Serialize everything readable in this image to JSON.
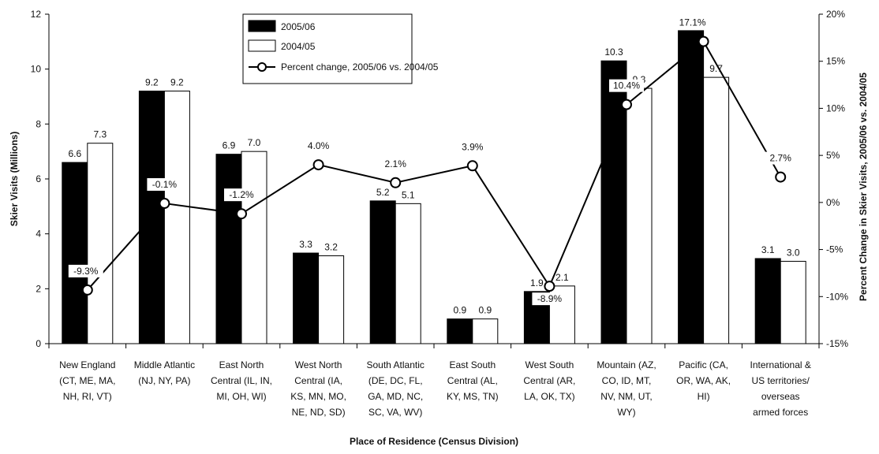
{
  "chart_data": {
    "type": "bar",
    "categories": [
      "New England (CT, ME, MA, NH, RI, VT)",
      "Middle Atlantic (NJ, NY, PA)",
      "East North Central (IL, IN, MI, OH, WI)",
      "West North Central (IA, KS, MN, MO, NE, ND, SD)",
      "South Atlantic (DE, DC, FL, GA, MD, NC, SC, VA, WV)",
      "East South Central (AL, KY, MS, TN)",
      "West South Central (AR, LA, OK, TX)",
      "Mountain (AZ, CO, ID, MT, NV, NM, UT, WY)",
      "Pacific (CA, OR, WA, AK, HI)",
      "International & US territories/ overseas armed forces"
    ],
    "category_lines": [
      [
        "New England",
        "(CT, ME, MA,",
        "NH, RI, VT)"
      ],
      [
        "Middle Atlantic",
        "(NJ, NY, PA)"
      ],
      [
        "East North",
        "Central (IL, IN,",
        "MI, OH, WI)"
      ],
      [
        "West North",
        "Central (IA,",
        "KS, MN, MO,",
        "NE, ND, SD)"
      ],
      [
        "South Atlantic",
        "(DE, DC, FL,",
        "GA, MD, NC,",
        "SC, VA, WV)"
      ],
      [
        "East South",
        "Central (AL,",
        "KY, MS, TN)"
      ],
      [
        "West South",
        "Central (AR,",
        "LA, OK, TX)"
      ],
      [
        "Mountain (AZ,",
        "CO, ID, MT,",
        "NV, NM, UT,",
        "WY)"
      ],
      [
        "Pacific (CA,",
        "OR, WA, AK,",
        "HI)"
      ],
      [
        "International &",
        "US territories/",
        "overseas",
        "armed forces"
      ]
    ],
    "series": [
      {
        "name": "2005/06",
        "kind": "bar",
        "color": "#000000",
        "values": [
          6.6,
          9.2,
          6.9,
          3.3,
          5.2,
          0.9,
          1.9,
          10.3,
          11.4,
          3.1
        ],
        "labels": [
          "6.6",
          "9.2",
          "6.9",
          "3.3",
          "5.2",
          "0.9",
          "1.9",
          "10.3",
          "11.4",
          "3.1"
        ]
      },
      {
        "name": "2004/05",
        "kind": "bar",
        "color": "#ffffff",
        "values": [
          7.3,
          9.2,
          7.0,
          3.2,
          5.1,
          0.9,
          2.1,
          9.3,
          9.7,
          3.0
        ],
        "labels": [
          "7.3",
          "9.2",
          "7.0",
          "3.2",
          "5.1",
          "0.9",
          "2.1",
          "9.3",
          "9.7",
          "3.0"
        ]
      },
      {
        "name": "Percent change, 2005/06 vs. 2004/05",
        "kind": "line",
        "axis": "right",
        "values": [
          -9.3,
          -0.1,
          -1.2,
          4.0,
          2.1,
          3.9,
          -8.9,
          10.4,
          17.1,
          2.7
        ],
        "labels": [
          "-9.3%",
          "-0.1%",
          "-1.2%",
          "4.0%",
          "2.1%",
          "3.9%",
          "-8.9%",
          "10.4%",
          "17.1%",
          "2.7%"
        ]
      }
    ],
    "xlabel": "Place of Residence (Census Division)",
    "ylabel": "Skier Visits (Millions)",
    "y2label": "Percent Change in Skier Visits, 2005/06 vs. 2004/05",
    "ylim": [
      0,
      12
    ],
    "y2lim": [
      -15,
      20
    ],
    "yticks": [
      "0",
      "2",
      "4",
      "6",
      "8",
      "10",
      "12"
    ],
    "y2ticks": [
      "-15%",
      "-10%",
      "-5%",
      "0%",
      "5%",
      "10%",
      "15%",
      "20%"
    ],
    "legend_position": "top-center",
    "grid": false
  }
}
